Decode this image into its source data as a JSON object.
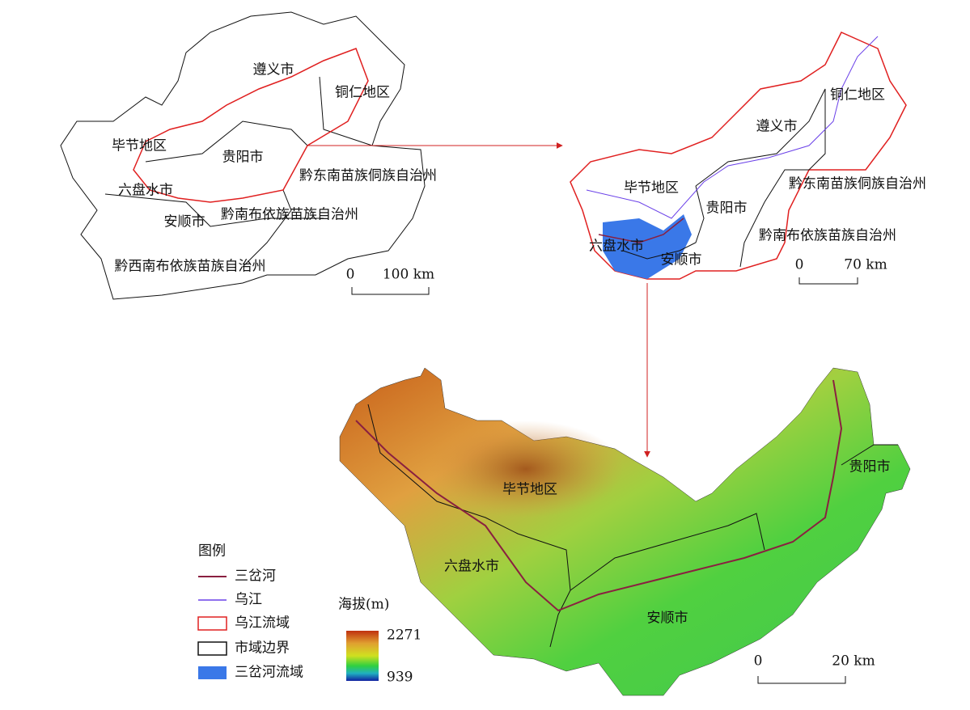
{
  "map1": {
    "labels": [
      "遵义市",
      "铜仁地区",
      "毕节地区",
      "贵阳市",
      "黔东南苗族侗族自治州",
      "六盘水市",
      "安顺市",
      "黔南布依族苗族自治州",
      "黔西南布依族苗族自治州"
    ],
    "scale_bar": {
      "start": "0",
      "end": "100 km"
    }
  },
  "map2": {
    "labels": [
      "铜仁地区",
      "遵义市",
      "毕节地区",
      "黔东南苗族侗族自治州",
      "贵阳市",
      "六盘水市",
      "黔南布依族苗族自治州",
      "安顺市"
    ],
    "scale_bar": {
      "start": "0",
      "end": "70 km"
    }
  },
  "map3": {
    "labels": [
      "毕节地区",
      "贵阳市",
      "六盘水市",
      "安顺市"
    ],
    "scale_bar": {
      "start": "0",
      "end": "20 km"
    }
  },
  "legend": {
    "title": "图例",
    "items": [
      "三岔河",
      "乌江",
      "乌江流域",
      "市域边界",
      "三岔河流域"
    ]
  },
  "elevation": {
    "title": "海拔(m)",
    "max": 2271,
    "min": 939
  }
}
